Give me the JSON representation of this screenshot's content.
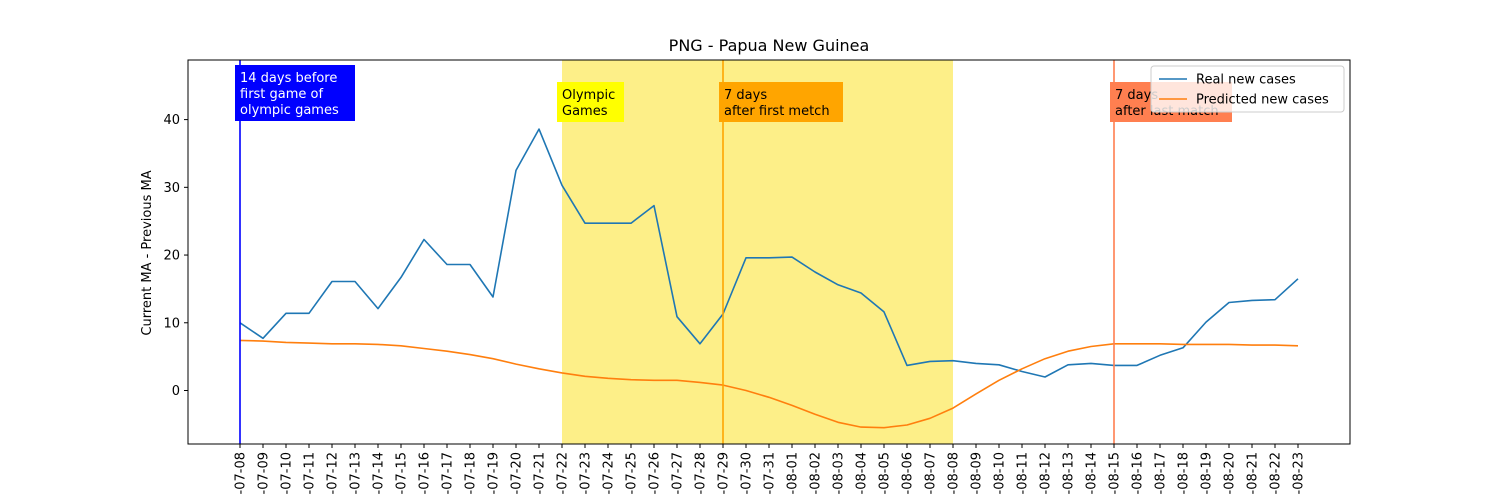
{
  "chart_data": {
    "type": "line",
    "title": "PNG - Papua New Guinea",
    "xlabel": "",
    "ylabel": "Current MA - Previous MA",
    "ylim": [
      -7.9,
      48.8
    ],
    "yticks": [
      0,
      10,
      20,
      30,
      40
    ],
    "x": [
      "2021-07-08",
      "2021-07-09",
      "2021-07-10",
      "2021-07-11",
      "2021-07-12",
      "2021-07-13",
      "2021-07-14",
      "2021-07-15",
      "2021-07-16",
      "2021-07-17",
      "2021-07-18",
      "2021-07-19",
      "2021-07-20",
      "2021-07-21",
      "2021-07-22",
      "2021-07-23",
      "2021-07-24",
      "2021-07-25",
      "2021-07-26",
      "2021-07-27",
      "2021-07-28",
      "2021-07-29",
      "2021-07-30",
      "2021-07-31",
      "2021-08-01",
      "2021-08-02",
      "2021-08-03",
      "2021-08-04",
      "2021-08-05",
      "2021-08-06",
      "2021-08-07",
      "2021-08-08",
      "2021-08-09",
      "2021-08-10",
      "2021-08-11",
      "2021-08-12",
      "2021-08-13",
      "2021-08-14",
      "2021-08-15",
      "2021-08-16",
      "2021-08-17",
      "2021-08-18",
      "2021-08-19",
      "2021-08-20",
      "2021-08-21",
      "2021-08-22",
      "2021-08-23"
    ],
    "tick_labels": [
      "-07-08",
      "-07-09",
      "-07-10",
      "-07-11",
      "-07-12",
      "-07-13",
      "-07-14",
      "-07-15",
      "-07-16",
      "-07-17",
      "-07-18",
      "-07-19",
      "-07-20",
      "-07-21",
      "-07-22",
      "-07-23",
      "-07-24",
      "-07-25",
      "-07-26",
      "-07-27",
      "-07-28",
      "-07-29",
      "-07-30",
      "-07-31",
      "-08-01",
      "-08-02",
      "-08-03",
      "-08-04",
      "-08-05",
      "-08-06",
      "-08-07",
      "-08-08",
      "-08-09",
      "-08-10",
      "-08-11",
      "-08-12",
      "-08-13",
      "-08-14",
      "-08-15",
      "-08-16",
      "-08-17",
      "-08-18",
      "-08-19",
      "-08-20",
      "-08-21",
      "-08-22",
      "-08-23"
    ],
    "series": [
      {
        "name": "Real new cases",
        "color": "#1f77b4",
        "values": [
          10.0,
          7.7,
          11.4,
          11.4,
          16.1,
          16.1,
          12.1,
          16.7,
          22.3,
          18.6,
          18.6,
          13.8,
          32.5,
          38.6,
          30.3,
          24.7,
          24.7,
          24.7,
          27.3,
          10.9,
          6.9,
          11.3,
          19.6,
          19.6,
          19.7,
          17.5,
          15.6,
          14.4,
          11.6,
          3.7,
          4.3,
          4.4,
          4.0,
          3.8,
          2.8,
          2.0,
          3.8,
          4.0,
          3.7,
          3.7,
          5.2,
          6.3,
          10.1,
          13.0,
          13.3,
          13.4,
          16.5
        ]
      },
      {
        "name": "Predicted new cases",
        "color": "#ff7f0e",
        "values": [
          7.4,
          7.3,
          7.1,
          7.0,
          6.9,
          6.9,
          6.8,
          6.6,
          6.2,
          5.8,
          5.3,
          4.7,
          3.9,
          3.2,
          2.6,
          2.1,
          1.8,
          1.6,
          1.5,
          1.5,
          1.2,
          0.8,
          0.0,
          -1.0,
          -2.2,
          -3.5,
          -4.7,
          -5.4,
          -5.5,
          -5.1,
          -4.1,
          -2.6,
          -0.5,
          1.5,
          3.2,
          4.7,
          5.8,
          6.5,
          6.9,
          6.9,
          6.9,
          6.8,
          6.8,
          6.8,
          6.7,
          6.7,
          6.6
        ]
      }
    ],
    "shaded_region": {
      "from": "2021-07-22",
      "to": "2021-08-08",
      "color": "#fdef88"
    },
    "event_lines": [
      {
        "at": "2021-07-08",
        "color": "#0000ff",
        "label_lines": [
          "14 days before",
          "first game of",
          "olympic games"
        ],
        "label_bg": "#0000ff",
        "label_fg": "#ffffff"
      },
      {
        "at": "2021-07-29",
        "color": "#ffa500",
        "label_lines": [
          "7 days",
          "after first metch"
        ],
        "label_bg": "#ffa500",
        "label_fg": "#000000"
      },
      {
        "at": "2021-08-15",
        "color": "#ff7f50",
        "label_lines": [
          "7 days",
          "after last match"
        ],
        "label_bg": "#ff7f50",
        "label_fg": "#000000"
      }
    ],
    "region_label": {
      "at": "2021-07-22",
      "label_lines": [
        "Olympic",
        "Games"
      ],
      "label_bg": "#ffff00",
      "label_fg": "#000000"
    },
    "legend": {
      "position": "top-right"
    }
  }
}
